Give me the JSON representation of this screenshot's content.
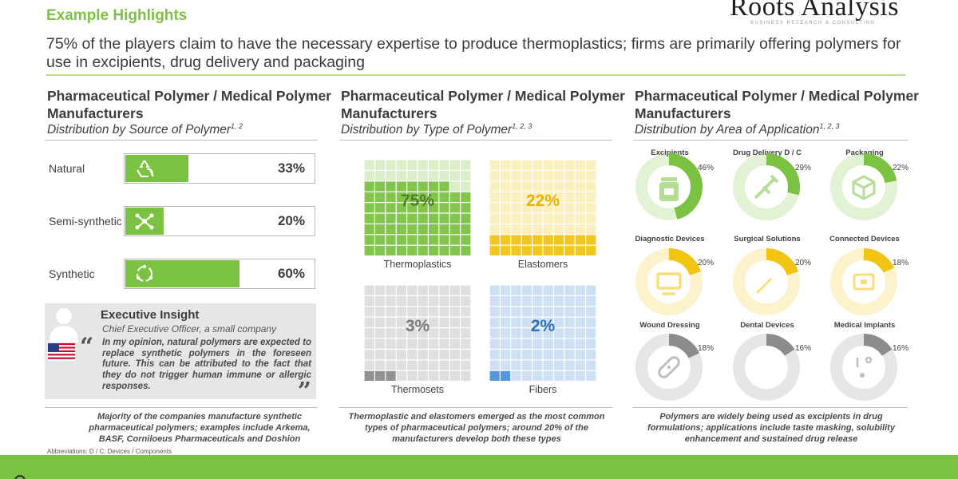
{
  "header": {
    "title": "Example Highlights",
    "logo_text": "Roots Analysis",
    "logo_tagline": "BUSINESS RESEARCH & CONSULTING",
    "headline": "75% of the players claim to have the necessary expertise to produce thermoplastics; firms are primarily offering polymers for use in excipients, drug delivery and packaging"
  },
  "panels": {
    "source": {
      "title": "Pharmaceutical Polymer / Medical Polymer Manufacturers",
      "subtitle": "Distribution by Source of Polymer",
      "footnote_refs": "1, 2"
    },
    "type": {
      "title": "Pharmaceutical Polymer / Medical Polymer Manufacturers",
      "subtitle": "Distribution by Type of Polymer",
      "footnote_refs": "1, 2, 3"
    },
    "application": {
      "title": "Pharmaceutical Polymer / Medical Polymer Manufacturers",
      "subtitle": "Distribution by Area of Application",
      "footnote_refs": "1, 2, 3"
    }
  },
  "insight": {
    "title": "Executive Insight",
    "role": "Chief Executive Officer, a small company",
    "quote": "In my opinion, natural polymers are expected to replace synthetic polymers in the foreseen future. This can be attributed to the fact that they do not trigger human immune or allergic responses."
  },
  "notes": {
    "source": "Majority of the companies manufacture synthetic pharmaceutical polymers; examples include Arkema, BASF, Corniloeus Pharmaceuticals and Doshion",
    "type": "Thermoplastic and elastomers emerged as the most common types of pharmaceutical polymers; around 20% of the manufacturers develop both these types",
    "application": "Polymers are widely being used as excipients in drug formulations; applications include taste masking, solubility enhancement and sustained drug release",
    "abbreviations": "Abbreviations: D / C: Devices / Components"
  },
  "colors": {
    "brand_green": "#7cc242",
    "thermoplastics": "#7cc242",
    "elastomers": "#f2c414",
    "thermosets": "#8c8c8c",
    "fibers": "#4a90d9"
  },
  "chart_data": [
    {
      "type": "bar",
      "orientation": "horizontal",
      "categories": [
        "Natural",
        "Semi-synthetic",
        "Synthetic"
      ],
      "values": [
        33,
        20,
        60
      ],
      "value_labels": [
        "33%",
        "20%",
        "60%"
      ],
      "icons": [
        "recycle-icon",
        "molecule-icon",
        "cycle-icon"
      ],
      "unit": "%"
    },
    {
      "type": "waffle",
      "categories": [
        "Thermoplastics",
        "Elastomers",
        "Thermosets",
        "Fibers"
      ],
      "values": [
        75,
        22,
        3,
        2
      ],
      "value_labels": [
        "75%",
        "22%",
        "3%",
        "2%"
      ],
      "unit": "%"
    },
    {
      "type": "donut",
      "categories": [
        "Excipients",
        "Drug Delivery D / C",
        "Packaging",
        "Diagnostic Devices",
        "Surgical Solutions",
        "Connected Devices",
        "Wound Dressing",
        "Dental Devices",
        "Medical Implants"
      ],
      "values": [
        46,
        29,
        22,
        20,
        20,
        18,
        18,
        16,
        16
      ],
      "value_labels": [
        "46%",
        "29%",
        "22%",
        "20%",
        "20%",
        "18%",
        "18%",
        "16%",
        "16%"
      ],
      "icons": [
        "pill-bottle-icon",
        "syringe-icon",
        "box-icon",
        "monitor-icon",
        "scalpel-icon",
        "device-icon",
        "bandage-icon",
        "tooth-icon",
        "stethoscope-icon"
      ],
      "unit": "%"
    }
  ]
}
